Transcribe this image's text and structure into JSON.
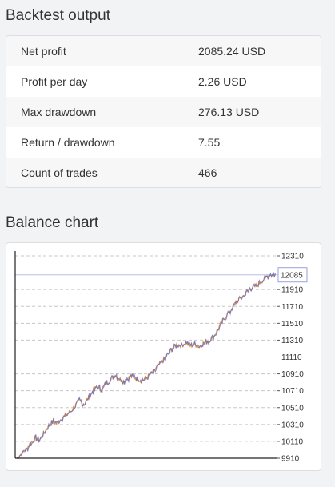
{
  "backtest": {
    "title": "Backtest output",
    "rows": [
      {
        "label": "Net profit",
        "value": "2085.24 USD"
      },
      {
        "label": "Profit per day",
        "value": "2.26 USD"
      },
      {
        "label": "Max drawdown",
        "value": "276.13 USD"
      },
      {
        "label": "Return / drawdown",
        "value": "7.55"
      },
      {
        "label": "Count of trades",
        "value": "466"
      }
    ]
  },
  "balance_chart": {
    "title": "Balance chart",
    "current_label": "12085"
  },
  "colors": {
    "series_a": "#d98a3a",
    "series_b": "#6a6fc0",
    "grid": "#c8c8c8",
    "current_line": "#b9bde8"
  },
  "chart_data": {
    "type": "line",
    "title": "Balance chart",
    "xlabel": "",
    "ylabel": "",
    "ylim": [
      9910,
      12310
    ],
    "y_ticks": [
      12310,
      11910,
      11710,
      11510,
      11310,
      11110,
      10910,
      10710,
      10510,
      10310,
      10110,
      9910
    ],
    "grid": true,
    "current_value": 12085,
    "series": [
      {
        "values": [
          9910,
          9960,
          10010,
          10080,
          10150,
          10120,
          10200,
          10280,
          10350,
          10320,
          10380,
          10420,
          10460,
          10520,
          10600,
          10540,
          10620,
          10700,
          10760,
          10720,
          10800,
          10840,
          10900,
          10850,
          10820,
          10860,
          10880,
          10850,
          10830,
          10860,
          10900,
          10960,
          11020,
          11080,
          11150,
          11220,
          11260,
          11250,
          11280,
          11240,
          11260,
          11230,
          11280,
          11300,
          11340,
          11420,
          11520,
          11600,
          11660,
          11740,
          11800,
          11840,
          11900,
          11940,
          11960,
          12010,
          12060,
          12090,
          12080
        ]
      }
    ]
  }
}
